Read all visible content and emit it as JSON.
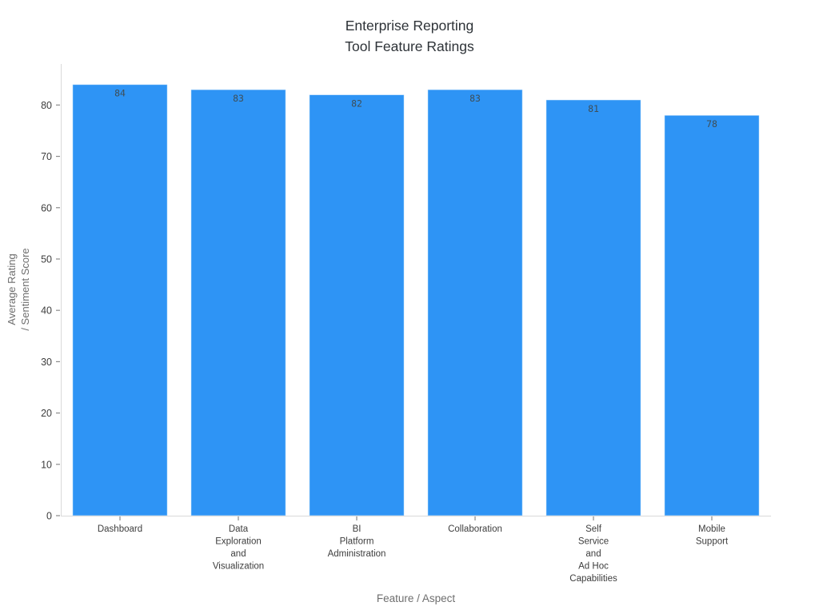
{
  "chart_data": {
    "type": "bar",
    "title": "Enterprise Reporting\nTool Feature Ratings",
    "xlabel": "Feature / Aspect",
    "ylabel": "Average Rating\n/ Sentiment Score",
    "categories": [
      "Dashboard",
      "Data\nExploration\nand\nVisualization",
      "BI\nPlatform\nAdministration",
      "Collaboration",
      "Self\nService\nand\nAd Hoc\nCapabilities",
      "Mobile\nSupport"
    ],
    "values": [
      84,
      83,
      82,
      83,
      81,
      78
    ],
    "ylim": [
      0,
      88
    ],
    "yticks": [
      0,
      10,
      20,
      30,
      40,
      50,
      60,
      70,
      80
    ],
    "grid": false,
    "legend": null,
    "bar_color": "#2e94f5",
    "bar_edge_color": "rgba(255,255,255,0.55)",
    "value_label_color": "#3e4e57",
    "tick_label_color": "#3d3d3d",
    "axis_line_color": "#d9d9d9",
    "tick_mark_color": "#8a8a8a",
    "axis_title_color": "#6e6e6e",
    "title_color": "#2e3338"
  }
}
